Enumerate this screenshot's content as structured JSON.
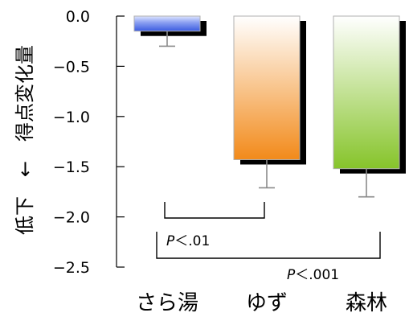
{
  "chart_data": {
    "type": "bar",
    "ylabel": "低下　←　得点変化量",
    "ylim": [
      -2.5,
      0.0
    ],
    "yticks": [
      0.0,
      -0.5,
      -1.0,
      -1.5,
      -2.0,
      -2.5
    ],
    "ytick_labels": [
      "0.0",
      "−0.5",
      "−1.0",
      "−1.5",
      "−2.0",
      "−2.5"
    ],
    "categories": [
      "さら湯",
      "ゆず",
      "森林"
    ],
    "values": [
      -0.15,
      -1.43,
      -1.52
    ],
    "errors": [
      0.15,
      0.28,
      0.28
    ],
    "colors": [
      {
        "top": "#ffffff",
        "bottom": "#3a5be0"
      },
      {
        "top": "#ffffff",
        "bottom": "#f28a1a"
      },
      {
        "top": "#ffffff",
        "bottom": "#86c42a"
      }
    ],
    "significance": [
      {
        "from": 0,
        "to": 1,
        "label": "P＜.01",
        "p": "P",
        "rest": "＜.01"
      },
      {
        "from": 0,
        "to": 2,
        "label": "P＜.001",
        "p": "P",
        "rest": "＜.001"
      }
    ],
    "grid": false
  }
}
